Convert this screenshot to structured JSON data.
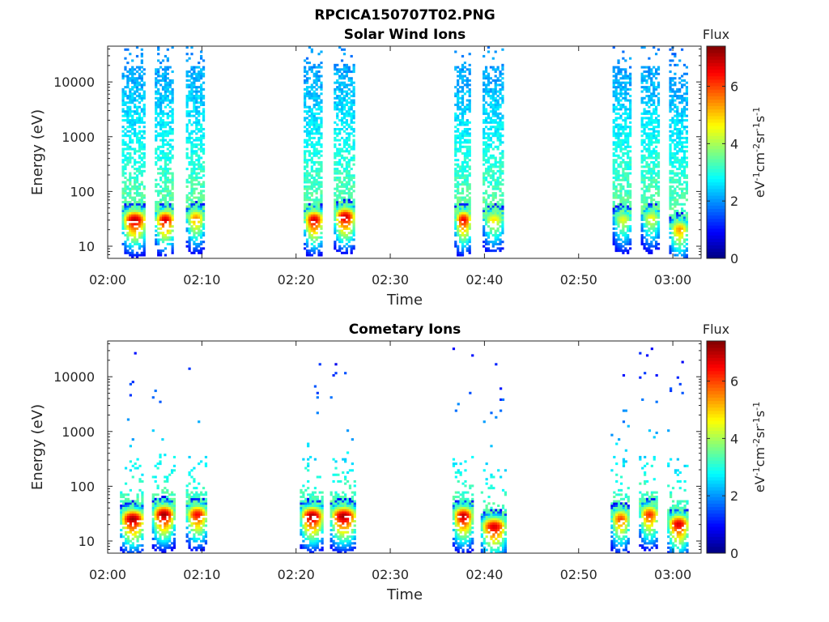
{
  "figure_title": "RPCICA150707T02.PNG",
  "chart_data": [
    {
      "type": "heatmap",
      "title": "Solar Wind Ions",
      "xlabel": "Time",
      "ylabel": "Energy (eV)",
      "x_ticks": [
        "02:00",
        "02:10",
        "02:20",
        "02:30",
        "02:40",
        "02:50",
        "03:00"
      ],
      "x_range_minutes": [
        0,
        63
      ],
      "y_scale": "log",
      "y_ticks": [
        "10",
        "100",
        "1000",
        "10000"
      ],
      "y_range": [
        6,
        45000
      ],
      "colorbar": {
        "label": "Flux",
        "unit": "eV-1cm-2sr-1s-1",
        "ticks": [
          "0",
          "2",
          "4",
          "6"
        ],
        "range": [
          0,
          7.4
        ],
        "colormap": "jet"
      },
      "bursts": [
        {
          "start_min": 1.5,
          "end_min": 4.0,
          "peak_energy_ev": 30,
          "peak_flux": 7.0
        },
        {
          "start_min": 5.0,
          "end_min": 7.0,
          "peak_energy_ev": 30,
          "peak_flux": 6.8
        },
        {
          "start_min": 8.3,
          "end_min": 10.2,
          "peak_energy_ev": 32,
          "peak_flux": 5.5
        },
        {
          "start_min": 20.8,
          "end_min": 22.8,
          "peak_energy_ev": 30,
          "peak_flux": 6.8
        },
        {
          "start_min": 24.0,
          "end_min": 26.2,
          "peak_energy_ev": 34,
          "peak_flux": 6.9
        },
        {
          "start_min": 36.8,
          "end_min": 38.5,
          "peak_energy_ev": 30,
          "peak_flux": 6.6
        },
        {
          "start_min": 39.8,
          "end_min": 42.0,
          "peak_energy_ev": 30,
          "peak_flux": 4.8
        },
        {
          "start_min": 53.6,
          "end_min": 55.6,
          "peak_energy_ev": 30,
          "peak_flux": 4.5
        },
        {
          "start_min": 56.6,
          "end_min": 58.6,
          "peak_energy_ev": 32,
          "peak_flux": 4.6
        },
        {
          "start_min": 59.6,
          "end_min": 61.6,
          "peak_energy_ev": 20,
          "peak_flux": 5.4
        }
      ]
    },
    {
      "type": "heatmap",
      "title": "Cometary Ions",
      "xlabel": "Time",
      "ylabel": "Energy (eV)",
      "x_ticks": [
        "02:00",
        "02:10",
        "02:20",
        "02:30",
        "02:40",
        "02:50",
        "03:00"
      ],
      "x_range_minutes": [
        0,
        63
      ],
      "y_scale": "log",
      "y_ticks": [
        "10",
        "100",
        "1000",
        "10000"
      ],
      "y_range": [
        6,
        45000
      ],
      "colorbar": {
        "label": "Flux",
        "unit": "eV-1cm-2sr-1s-1",
        "ticks": [
          "0",
          "2",
          "4",
          "6"
        ],
        "range": [
          0,
          7.4
        ],
        "colormap": "jet"
      },
      "bursts": [
        {
          "start_min": 1.3,
          "end_min": 3.8,
          "peak_energy_ev": 25,
          "peak_flux": 7.2
        },
        {
          "start_min": 4.7,
          "end_min": 7.0,
          "peak_energy_ev": 30,
          "peak_flux": 7.2
        },
        {
          "start_min": 8.3,
          "end_min": 10.5,
          "peak_energy_ev": 30,
          "peak_flux": 6.5
        },
        {
          "start_min": 20.4,
          "end_min": 22.8,
          "peak_energy_ev": 28,
          "peak_flux": 7.2
        },
        {
          "start_min": 23.6,
          "end_min": 26.3,
          "peak_energy_ev": 28,
          "peak_flux": 7.2
        },
        {
          "start_min": 36.6,
          "end_min": 38.7,
          "peak_energy_ev": 28,
          "peak_flux": 7.0
        },
        {
          "start_min": 39.6,
          "end_min": 42.2,
          "peak_energy_ev": 18,
          "peak_flux": 6.8
        },
        {
          "start_min": 53.4,
          "end_min": 55.3,
          "peak_energy_ev": 25,
          "peak_flux": 6.0
        },
        {
          "start_min": 56.4,
          "end_min": 58.4,
          "peak_energy_ev": 30,
          "peak_flux": 6.2
        },
        {
          "start_min": 59.4,
          "end_min": 61.6,
          "peak_energy_ev": 20,
          "peak_flux": 6.8
        }
      ]
    }
  ]
}
